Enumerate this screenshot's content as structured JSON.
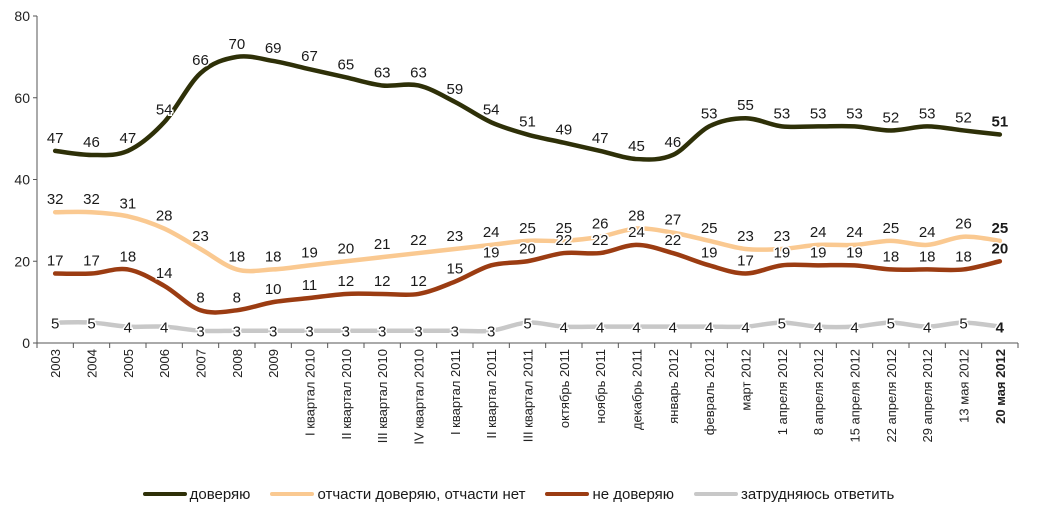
{
  "chart_data": {
    "type": "line",
    "title": "",
    "xlabel": "",
    "ylabel": "",
    "ylim": [
      0,
      80
    ],
    "yticks": [
      0,
      20,
      40,
      60,
      80
    ],
    "grid": false,
    "legend_position": "bottom",
    "categories": [
      "2003",
      "2004",
      "2005",
      "2006",
      "2007",
      "2008",
      "2009",
      "I квартал 2010",
      "II квартал 2010",
      "III квартал 2010",
      "IV квартал 2010",
      "I квартал 2011",
      "II квартал 2011",
      "III квартал 2011",
      "октябрь 2011",
      "ноябрь 2011",
      "декабрь 2011",
      "январь 2012",
      "февраль 2012",
      "март 2012",
      "1 апреля 2012",
      "8 апреля 2012",
      "15 апреля 2012",
      "22 апреля 2012",
      "29 апреля 2012",
      "13 мая 2012",
      "20 мая 2012"
    ],
    "highlight_last": true,
    "series": [
      {
        "name": "доверяю",
        "color": "#2e3008",
        "values": [
          47,
          46,
          47,
          54,
          66,
          70,
          69,
          67,
          65,
          63,
          63,
          59,
          54,
          51,
          49,
          47,
          45,
          46,
          53,
          55,
          53,
          53,
          53,
          52,
          53,
          52,
          51
        ]
      },
      {
        "name": "отчасти доверяю, отчасти нет",
        "color": "#fac991",
        "values": [
          32,
          32,
          31,
          28,
          23,
          18,
          18,
          19,
          20,
          21,
          22,
          23,
          24,
          25,
          25,
          26,
          28,
          27,
          25,
          23,
          23,
          24,
          24,
          25,
          24,
          26,
          25
        ]
      },
      {
        "name": "не доверяю",
        "color": "#9b3c12",
        "values": [
          17,
          17,
          18,
          14,
          8,
          8,
          10,
          11,
          12,
          12,
          12,
          15,
          19,
          20,
          22,
          22,
          24,
          22,
          19,
          17,
          19,
          19,
          19,
          18,
          18,
          18,
          20
        ]
      },
      {
        "name": "затрудняюсь ответить",
        "color": "#c8c8c8",
        "values": [
          5,
          5,
          4,
          4,
          3,
          3,
          3,
          3,
          3,
          3,
          3,
          3,
          3,
          5,
          4,
          4,
          4,
          4,
          4,
          4,
          5,
          4,
          4,
          5,
          4,
          5,
          4
        ]
      }
    ]
  }
}
